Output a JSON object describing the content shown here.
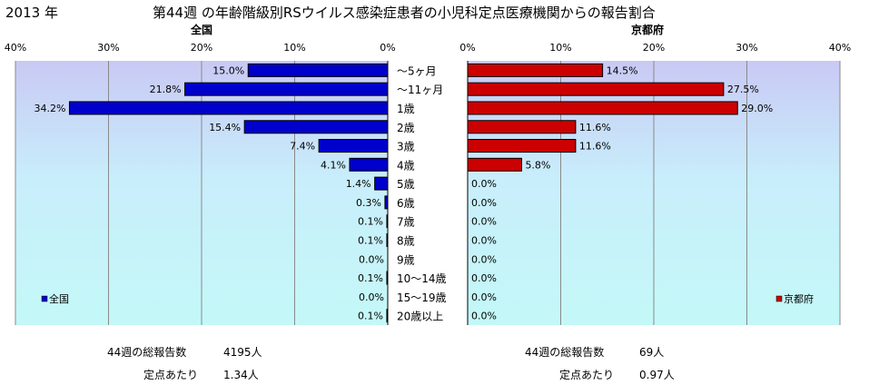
{
  "year_label": "2013 年",
  "title": "第44週 の年齢階級別RSウイルス感染症患者の小児科定点医療機関からの報告割合",
  "chart_data": [
    {
      "type": "bar",
      "orientation": "horizontal",
      "title": "全国",
      "legend": "全国",
      "legend_position": "bottom-left",
      "color": "#0000CC",
      "xlim": [
        0,
        40
      ],
      "ticks": [
        "40%",
        "30%",
        "20%",
        "10%",
        "0%"
      ],
      "direction": "right-to-left",
      "categories": [
        "～5ヶ月",
        "～11ヶ月",
        "1歳",
        "2歳",
        "3歳",
        "4歳",
        "5歳",
        "6歳",
        "7歳",
        "8歳",
        "9歳",
        "10～14歳",
        "15～19歳",
        "20歳以上"
      ],
      "values": [
        15.0,
        21.8,
        34.2,
        15.4,
        7.4,
        4.1,
        1.4,
        0.3,
        0.1,
        0.1,
        0.0,
        0.1,
        0.0,
        0.1
      ],
      "value_labels": [
        "15.0%",
        "21.8%",
        "34.2%",
        "15.4%",
        "7.4%",
        "4.1%",
        "1.4%",
        "0.3%",
        "0.1%",
        "0.1%",
        "0.0%",
        "0.1%",
        "0.0%",
        "0.1%"
      ],
      "grid": true
    },
    {
      "type": "bar",
      "orientation": "horizontal",
      "title": "京都府",
      "legend": "京都府",
      "legend_position": "bottom-right",
      "color": "#CC0000",
      "xlim": [
        0,
        40
      ],
      "ticks": [
        "0%",
        "10%",
        "20%",
        "30%",
        "40%"
      ],
      "direction": "left-to-right",
      "categories": [
        "～5ヶ月",
        "～11ヶ月",
        "1歳",
        "2歳",
        "3歳",
        "4歳",
        "5歳",
        "6歳",
        "7歳",
        "8歳",
        "9歳",
        "10～14歳",
        "15～19歳",
        "20歳以上"
      ],
      "values": [
        14.5,
        27.5,
        29.0,
        11.6,
        11.6,
        5.8,
        0.0,
        0.0,
        0.0,
        0.0,
        0.0,
        0.0,
        0.0,
        0.0
      ],
      "value_labels": [
        "14.5%",
        "27.5%",
        "29.0%",
        "11.6%",
        "11.6%",
        "5.8%",
        "0.0%",
        "0.0%",
        "0.0%",
        "0.0%",
        "0.0%",
        "0.0%",
        "0.0%",
        "0.0%"
      ],
      "grid": true
    }
  ],
  "stats": {
    "national": {
      "total_label": "44週の総報告数",
      "total_value": "4195人",
      "per_label": "定点あたり",
      "per_value": "1.34人"
    },
    "kyoto": {
      "total_label": "44週の総報告数",
      "total_value": "69人",
      "per_label": "定点あたり",
      "per_value": "0.97人"
    }
  }
}
